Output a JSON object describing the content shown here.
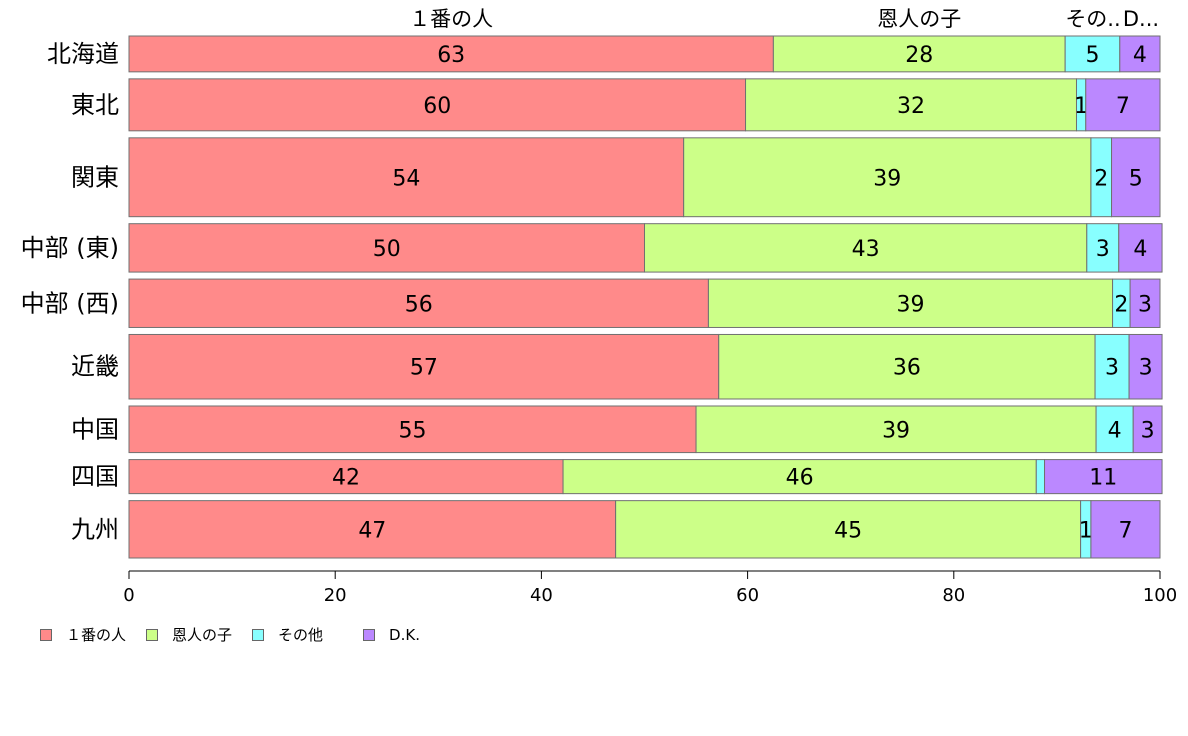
{
  "chart_data": {
    "type": "bar",
    "orientation": "horizontal",
    "stacked": true,
    "categories": [
      "北海道",
      "東北",
      "関東",
      "中部 (東)",
      "中部 (西)",
      "近畿",
      "中国",
      "四国",
      "九州"
    ],
    "category_weights": [
      1.0,
      1.45,
      2.2,
      1.35,
      1.35,
      1.8,
      1.3,
      0.95,
      1.6
    ],
    "series": [
      {
        "name": "１番の人",
        "color": "#FF8A8A",
        "values": [
          62.5,
          59.8,
          53.8,
          50.0,
          56.2,
          57.2,
          55.0,
          42.1,
          47.2
        ]
      },
      {
        "name": "恩人の子",
        "color": "#CCFF88",
        "values": [
          28.3,
          32.1,
          39.5,
          42.9,
          39.2,
          36.5,
          38.8,
          45.9,
          45.1
        ]
      },
      {
        "name": "その他",
        "color": "#88FFFF",
        "values": [
          5.3,
          0.9,
          2.0,
          3.1,
          1.7,
          3.3,
          3.6,
          0.8,
          1.0
        ]
      },
      {
        "name": "D.K.",
        "color": "#BB88FF",
        "values": [
          3.9,
          7.2,
          4.7,
          4.2,
          2.9,
          3.2,
          2.8,
          11.4,
          6.7
        ]
      }
    ],
    "labels": [
      [
        "63",
        "28",
        "5",
        "4"
      ],
      [
        "60",
        "32",
        "1",
        "7"
      ],
      [
        "54",
        "39",
        "2",
        "5"
      ],
      [
        "50",
        "43",
        "3",
        "4"
      ],
      [
        "56",
        "39",
        "2",
        "3"
      ],
      [
        "57",
        "36",
        "3",
        "3"
      ],
      [
        "55",
        "39",
        "4",
        "3"
      ],
      [
        "42",
        "46",
        "",
        "11"
      ],
      [
        "47",
        "45",
        "1",
        "7"
      ]
    ],
    "top_labels": [
      "１番の人",
      "恩人の子",
      "その..",
      "D..."
    ],
    "xlim": [
      0,
      100
    ],
    "xticks": [
      "0",
      "20",
      "40",
      "60",
      "80",
      "100"
    ],
    "grid": false,
    "legend_position": "bottom-left"
  }
}
